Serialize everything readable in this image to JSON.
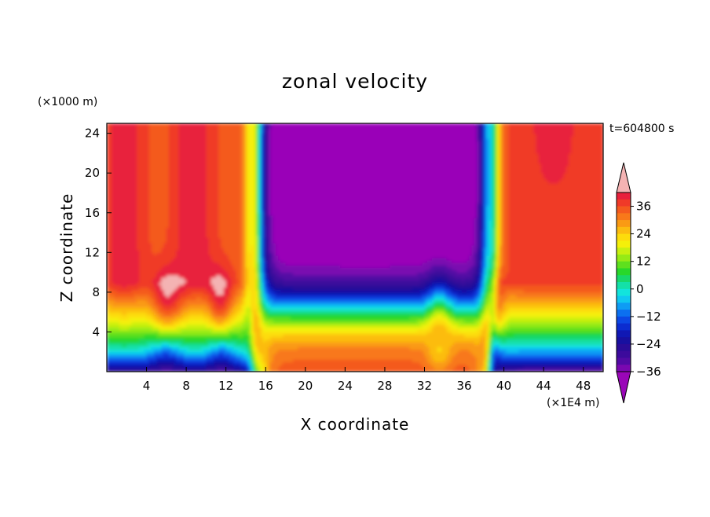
{
  "chart_data": {
    "type": "heatmap",
    "title": "zonal velocity",
    "xlabel": "X coordinate",
    "ylabel": "Z coordinate",
    "x_unit": "(×1E4 m)",
    "y_unit": "(×1000 m)",
    "time_label": "t=604800 s",
    "xlim": [
      0,
      50
    ],
    "ylim": [
      0,
      25
    ],
    "x_ticks": [
      4,
      8,
      12,
      16,
      20,
      24,
      28,
      32,
      36,
      40,
      44,
      48
    ],
    "y_ticks": [
      4,
      8,
      12,
      16,
      20,
      24
    ],
    "colorbar": {
      "labels": [
        36,
        24,
        12,
        0,
        -12,
        -24,
        -36
      ],
      "levels": [
        42,
        39,
        36,
        33,
        30,
        27,
        24,
        21,
        18,
        15,
        12,
        9,
        6,
        3,
        0,
        -3,
        -6,
        -9,
        -12,
        -15,
        -18,
        -21,
        -24,
        -27,
        -30,
        -33,
        -36,
        -39
      ],
      "colors": [
        "#f4b3b3",
        "#e8203c",
        "#f03a28",
        "#f45a1e",
        "#f8781a",
        "#fa9a14",
        "#fcbc10",
        "#fddc0c",
        "#f4f00a",
        "#c8f010",
        "#96ea16",
        "#5ee01e",
        "#28d82a",
        "#18d86a",
        "#14e0a8",
        "#12e4dc",
        "#10c8f0",
        "#0e9cf4",
        "#0c70f0",
        "#0c48e4",
        "#0c2cd0",
        "#1018b4",
        "#1810a0",
        "#2a0c98",
        "#3c0a9c",
        "#520aa4",
        "#7a08b0",
        "#9a06b8"
      ]
    },
    "description": "Zonal velocity field with positive (eastward, red) flow on the left (x<14) and right (x>40) and negative (westward, blue/purple) flow aloft between x≈16 and x≈38; near-surface layer strongly positive (red) in the middle band and negative (blue) on the sides, with vertical jet bands near x≈15 and x≈38.5."
  }
}
